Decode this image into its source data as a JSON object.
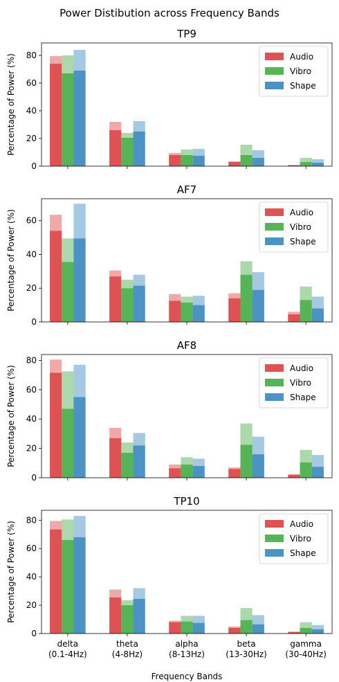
{
  "figure_title": "Power Distibution across Frequency Bands",
  "colors": {
    "Audio": "#d62728",
    "Vibro": "#2ca02c",
    "Shape": "#1f77b4"
  },
  "chart_data": [
    {
      "type": "bar",
      "title": "TP9",
      "ylabel": "Percentage of Power (%)",
      "xlabel": "",
      "categories": [
        "delta\n(0.1-4Hz)",
        "theta\n(4-8Hz)",
        "alpha\n(8-13Hz)",
        "beta\n(13-30Hz)",
        "gamma\n(30-40Hz)"
      ],
      "ylim": [
        0,
        89
      ],
      "yticks": [
        0,
        20,
        40,
        60,
        80
      ],
      "legend": "top-right",
      "series": [
        {
          "name": "Audio",
          "values": [
            74,
            26,
            8,
            3,
            0.5
          ],
          "upper": [
            79.5,
            32,
            9.5,
            3.5,
            1
          ]
        },
        {
          "name": "Vibro",
          "values": [
            67,
            20.5,
            8,
            8,
            3
          ],
          "upper": [
            80,
            24,
            12,
            15.5,
            6
          ]
        },
        {
          "name": "Shape",
          "values": [
            69,
            25,
            7.5,
            6,
            2.5
          ],
          "upper": [
            84,
            32.5,
            12.5,
            11.5,
            5
          ]
        }
      ]
    },
    {
      "type": "bar",
      "title": "AF7",
      "ylabel": "Percentage of Power (%)",
      "xlabel": "",
      "categories": [
        "delta\n(0.1-4Hz)",
        "theta\n(4-8Hz)",
        "alpha\n(8-13Hz)",
        "beta\n(13-30Hz)",
        "gamma\n(30-40Hz)"
      ],
      "ylim": [
        0,
        73
      ],
      "yticks": [
        0,
        20,
        40,
        60
      ],
      "legend": "top-right",
      "series": [
        {
          "name": "Audio",
          "values": [
            54,
            27,
            12.5,
            14,
            4.5
          ],
          "upper": [
            63.5,
            30.5,
            16.5,
            17,
            6
          ]
        },
        {
          "name": "Vibro",
          "values": [
            35.5,
            20,
            11.5,
            28,
            13
          ],
          "upper": [
            49.5,
            25,
            15,
            36,
            21
          ]
        },
        {
          "name": "Shape",
          "values": [
            49.5,
            21.5,
            10,
            19,
            8
          ],
          "upper": [
            70,
            28,
            15.5,
            29.5,
            15
          ]
        }
      ]
    },
    {
      "type": "bar",
      "title": "AF8",
      "ylabel": "Percentage of Power (%)",
      "xlabel": "",
      "categories": [
        "delta\n(0.1-4Hz)",
        "theta\n(4-8Hz)",
        "alpha\n(8-13Hz)",
        "beta\n(13-30Hz)",
        "gamma\n(30-40Hz)"
      ],
      "ylim": [
        0,
        84
      ],
      "yticks": [
        0,
        20,
        40,
        60,
        80
      ],
      "legend": "top-right",
      "series": [
        {
          "name": "Audio",
          "values": [
            71.5,
            27,
            6.5,
            6,
            2
          ],
          "upper": [
            80.5,
            34,
            9,
            7,
            2.5
          ]
        },
        {
          "name": "Vibro",
          "values": [
            47,
            17,
            9,
            22.5,
            10.5
          ],
          "upper": [
            72.5,
            24,
            14,
            37,
            19
          ]
        },
        {
          "name": "Shape",
          "values": [
            55,
            22,
            8,
            16,
            7.5
          ],
          "upper": [
            77,
            30.5,
            13,
            28,
            15.5
          ]
        }
      ]
    },
    {
      "type": "bar",
      "title": "TP10",
      "ylabel": "Percentage of Power (%)",
      "xlabel": "Frequency Bands",
      "categories": [
        "delta\n(0.1-4Hz)",
        "theta\n(4-8Hz)",
        "alpha\n(8-13Hz)",
        "beta\n(13-30Hz)",
        "gamma\n(30-40Hz)"
      ],
      "ylim": [
        0,
        87
      ],
      "yticks": [
        0,
        20,
        40,
        60,
        80
      ],
      "legend": "top-right",
      "series": [
        {
          "name": "Audio",
          "values": [
            73.5,
            25.5,
            8,
            4,
            1
          ],
          "upper": [
            79.5,
            31,
            9,
            5,
            1.5
          ]
        },
        {
          "name": "Vibro",
          "values": [
            66,
            20,
            8.5,
            9.5,
            4
          ],
          "upper": [
            80.5,
            23.5,
            12.5,
            18,
            8
          ]
        },
        {
          "name": "Shape",
          "values": [
            68,
            24.5,
            7.5,
            6.5,
            3
          ],
          "upper": [
            83,
            32,
            12.5,
            13,
            6
          ]
        }
      ]
    }
  ]
}
